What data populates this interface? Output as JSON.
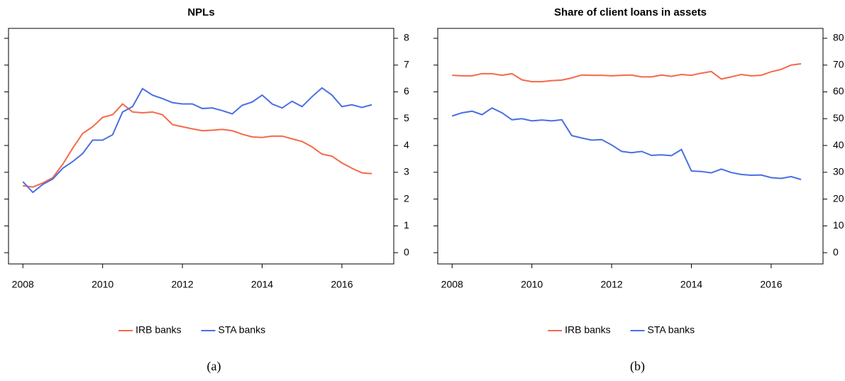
{
  "chart_data": [
    {
      "type": "line",
      "title": "NPLs",
      "caption": "(a)",
      "x": [
        2008,
        2008.25,
        2008.5,
        2008.75,
        2009,
        2009.25,
        2009.5,
        2009.75,
        2010,
        2010.25,
        2010.5,
        2010.75,
        2011,
        2011.25,
        2011.5,
        2011.75,
        2012,
        2012.25,
        2012.5,
        2012.75,
        2013,
        2013.25,
        2013.5,
        2013.75,
        2014,
        2014.25,
        2014.5,
        2014.75,
        2015,
        2015.25,
        2015.5,
        2015.75,
        2016,
        2016.25,
        2016.5,
        2016.75
      ],
      "series": [
        {
          "name": "IRB banks",
          "color": "#f4694b",
          "values": [
            2.5,
            2.45,
            2.6,
            2.8,
            3.3,
            3.9,
            4.45,
            4.7,
            5.05,
            5.15,
            5.55,
            5.25,
            5.22,
            5.25,
            5.15,
            4.78,
            4.7,
            4.62,
            4.55,
            4.57,
            4.6,
            4.55,
            4.42,
            4.32,
            4.3,
            4.35,
            4.35,
            4.25,
            4.15,
            3.95,
            3.68,
            3.6,
            3.35,
            3.15,
            2.98,
            2.95
          ]
        },
        {
          "name": "STA banks",
          "color": "#4a6fe3",
          "values": [
            2.65,
            2.25,
            2.55,
            2.75,
            3.15,
            3.4,
            3.7,
            4.2,
            4.2,
            4.4,
            5.25,
            5.45,
            6.12,
            5.88,
            5.75,
            5.6,
            5.55,
            5.55,
            5.38,
            5.4,
            5.3,
            5.18,
            5.5,
            5.62,
            5.88,
            5.55,
            5.4,
            5.65,
            5.45,
            5.82,
            6.15,
            5.88,
            5.45,
            5.52,
            5.42,
            5.52
          ]
        }
      ],
      "xlim": [
        2007.64,
        2017.3
      ],
      "xticks": [
        2008,
        2010,
        2012,
        2014,
        2016
      ],
      "ylim": [
        -0.42,
        8.37
      ],
      "yticks": [
        0,
        1,
        2,
        3,
        4,
        5,
        6,
        7,
        8
      ],
      "legend": "bottom"
    },
    {
      "type": "line",
      "title": "Share of client loans in assets",
      "caption": "(b)",
      "x": [
        2008,
        2008.25,
        2008.5,
        2008.75,
        2009,
        2009.25,
        2009.5,
        2009.75,
        2010,
        2010.25,
        2010.5,
        2010.75,
        2011,
        2011.25,
        2011.5,
        2011.75,
        2012,
        2012.25,
        2012.5,
        2012.75,
        2013,
        2013.25,
        2013.5,
        2013.75,
        2014,
        2014.25,
        2014.5,
        2014.75,
        2015,
        2015.25,
        2015.5,
        2015.75,
        2016,
        2016.25,
        2016.5,
        2016.75
      ],
      "series": [
        {
          "name": "IRB banks",
          "color": "#f4694b",
          "values": [
            66.2,
            66,
            66,
            66.8,
            66.8,
            66.2,
            66.8,
            64.5,
            63.8,
            63.8,
            64.2,
            64.4,
            65.2,
            66.3,
            66.2,
            66.2,
            66,
            66.2,
            66.3,
            65.6,
            65.6,
            66.3,
            65.8,
            66.5,
            66.2,
            67,
            67.6,
            64.8,
            65.6,
            66.5,
            66,
            66.2,
            67.5,
            68.4,
            70,
            70.5
          ]
        },
        {
          "name": "STA banks",
          "color": "#4a6fe3",
          "values": [
            51,
            52.2,
            52.8,
            51.5,
            54,
            52.2,
            49.6,
            50,
            49.2,
            49.5,
            49.2,
            49.6,
            43.7,
            42.8,
            42,
            42.2,
            40.2,
            37.8,
            37.3,
            37.8,
            36.3,
            36.5,
            36.2,
            38.5,
            30.5,
            30.3,
            29.8,
            31.2,
            29.9,
            29.2,
            28.9,
            29,
            28,
            27.7,
            28.4,
            27.3
          ]
        }
      ],
      "xlim": [
        2007.64,
        2017.3
      ],
      "xticks": [
        2008,
        2010,
        2012,
        2014,
        2016
      ],
      "ylim": [
        -4.2,
        83.7
      ],
      "yticks": [
        0,
        10,
        20,
        30,
        40,
        50,
        60,
        70,
        80
      ],
      "legend": "bottom"
    }
  ]
}
